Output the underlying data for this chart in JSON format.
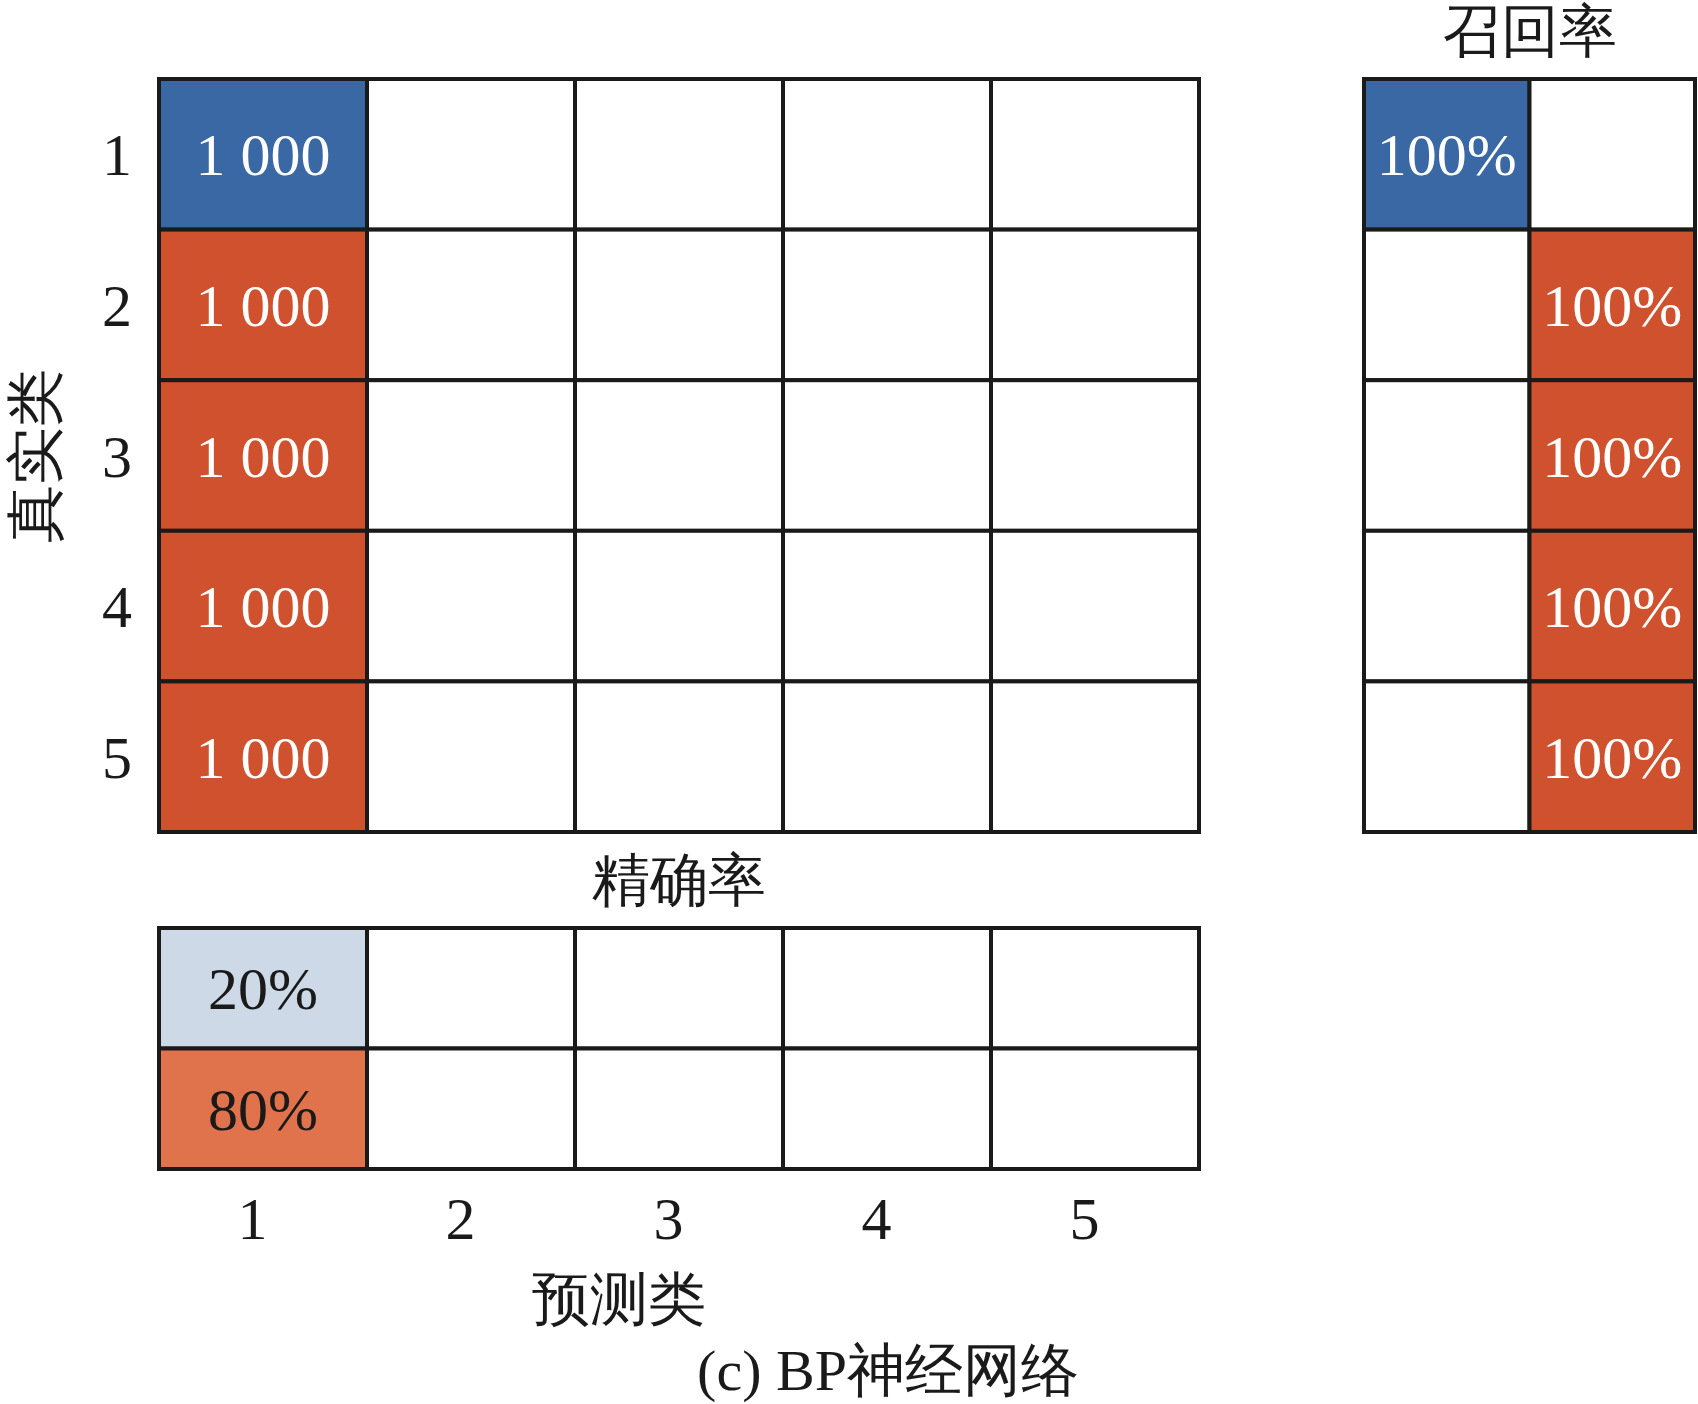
{
  "chart_data": [
    {
      "type": "heatmap",
      "ylabel": "真实类",
      "xlabel": "预测类",
      "categories": [
        "1",
        "2",
        "3",
        "4",
        "5"
      ],
      "y_categories": [
        "1",
        "2",
        "3",
        "4",
        "5"
      ],
      "cells": [
        [
          1000,
          null,
          null,
          null,
          null
        ],
        [
          1000,
          null,
          null,
          null,
          null
        ],
        [
          1000,
          null,
          null,
          null,
          null
        ],
        [
          1000,
          null,
          null,
          null,
          null
        ],
        [
          1000,
          null,
          null,
          null,
          null
        ]
      ],
      "cell_labels": [
        [
          "1 000",
          null,
          null,
          null,
          null
        ],
        [
          "1 000",
          null,
          null,
          null,
          null
        ],
        [
          "1 000",
          null,
          null,
          null,
          null
        ],
        [
          "1 000",
          null,
          null,
          null,
          null
        ],
        [
          "1 000",
          null,
          null,
          null,
          null
        ]
      ],
      "colors": [
        [
          "#3a68a4",
          null,
          null,
          null,
          null
        ],
        [
          "#cf512d",
          null,
          null,
          null,
          null
        ],
        [
          "#cf512d",
          null,
          null,
          null,
          null
        ],
        [
          "#cf512d",
          null,
          null,
          null,
          null
        ],
        [
          "#cf512d",
          null,
          null,
          null,
          null
        ]
      ],
      "annotations": [
        "(c)  BP神经网络"
      ]
    },
    {
      "type": "heatmap",
      "title": "召回率",
      "categories": [
        null,
        null
      ],
      "y_categories": [
        null,
        null,
        null,
        null,
        null
      ],
      "tick_labels": false,
      "cells": [
        [
          100,
          null
        ],
        [
          null,
          100
        ],
        [
          null,
          100
        ],
        [
          null,
          100
        ],
        [
          null,
          100
        ]
      ],
      "cell_labels": [
        [
          "100%",
          null
        ],
        [
          null,
          "100%"
        ],
        [
          null,
          "100%"
        ],
        [
          null,
          "100%"
        ],
        [
          null,
          "100%"
        ]
      ],
      "colors": [
        [
          "#3a68a4",
          null
        ],
        [
          null,
          "#cf512d"
        ],
        [
          null,
          "#cf512d"
        ],
        [
          null,
          "#cf512d"
        ],
        [
          null,
          "#cf512d"
        ]
      ]
    },
    {
      "type": "heatmap",
      "title": "精确率",
      "categories": [
        null,
        null,
        null,
        null,
        null
      ],
      "y_categories": [
        null,
        null
      ],
      "tick_labels": false,
      "cells": [
        [
          20,
          null,
          null,
          null,
          null
        ],
        [
          80,
          null,
          null,
          null,
          null
        ]
      ],
      "cell_labels": [
        [
          "20%",
          null,
          null,
          null,
          null
        ],
        [
          "80%",
          null,
          null,
          null,
          null
        ]
      ],
      "colors": [
        [
          "#3a68a4",
          null,
          null,
          null,
          null
        ],
        [
          "#e0734b",
          null,
          null,
          null,
          null
        ]
      ]
    }
  ]
}
